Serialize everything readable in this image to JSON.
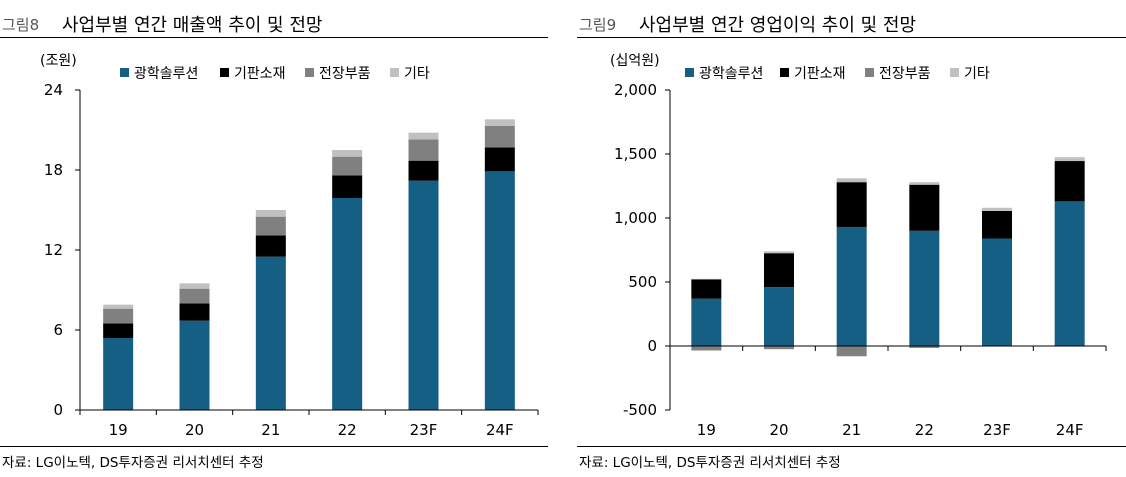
{
  "chart_data": [
    {
      "type": "bar",
      "stacked": true,
      "figure_label": "그림8",
      "title": "사업부별 연간 매출액 추이 및 전망",
      "unit_label": "(조원)",
      "categories": [
        "19",
        "20",
        "21",
        "22",
        "23F",
        "24F"
      ],
      "ylim": [
        0,
        24
      ],
      "yticks": [
        0,
        6,
        12,
        18,
        24
      ],
      "ytick_labels": [
        "0",
        "6",
        "12",
        "18",
        "24"
      ],
      "series": [
        {
          "name": "광학솔루션",
          "color": "#155f84",
          "values": [
            5.4,
            6.7,
            11.5,
            15.9,
            17.2,
            17.9
          ]
        },
        {
          "name": "기판소재",
          "color": "#000000",
          "values": [
            1.1,
            1.3,
            1.6,
            1.7,
            1.5,
            1.8
          ]
        },
        {
          "name": "전장부품",
          "color": "#808080",
          "values": [
            1.1,
            1.1,
            1.4,
            1.4,
            1.6,
            1.6
          ]
        },
        {
          "name": "기타",
          "color": "#c0c0c0",
          "values": [
            0.3,
            0.4,
            0.5,
            0.5,
            0.5,
            0.5
          ]
        }
      ],
      "legend_position": "top",
      "source": "자료: LG이노텍, DS투자증권 리서치센터 추정"
    },
    {
      "type": "bar",
      "stacked": true,
      "figure_label": "그림9",
      "title": "사업부별 연간 영업이익 추이 및 전망",
      "unit_label": "(십억원)",
      "categories": [
        "19",
        "20",
        "21",
        "22",
        "23F",
        "24F"
      ],
      "ylim": [
        -500,
        2000
      ],
      "yticks": [
        -500,
        0,
        500,
        1000,
        1500,
        2000
      ],
      "ytick_labels": [
        "-500",
        "0",
        "500",
        "1,000",
        "1,500",
        "2,000"
      ],
      "series": [
        {
          "name": "광학솔루션",
          "color": "#155f84",
          "values": [
            370,
            460,
            930,
            900,
            840,
            1130
          ]
        },
        {
          "name": "기판소재",
          "color": "#000000",
          "values": [
            150,
            265,
            350,
            360,
            215,
            315
          ]
        },
        {
          "name": "전장부품",
          "color": "#808080",
          "values": [
            -35,
            -25,
            -80,
            -15,
            0,
            0
          ]
        },
        {
          "name": "기타",
          "color": "#c0c0c0",
          "values": [
            5,
            15,
            30,
            20,
            25,
            30
          ]
        }
      ],
      "legend_position": "top",
      "source": "자료: LG이노텍, DS투자증권 리서치센터 추정"
    }
  ]
}
